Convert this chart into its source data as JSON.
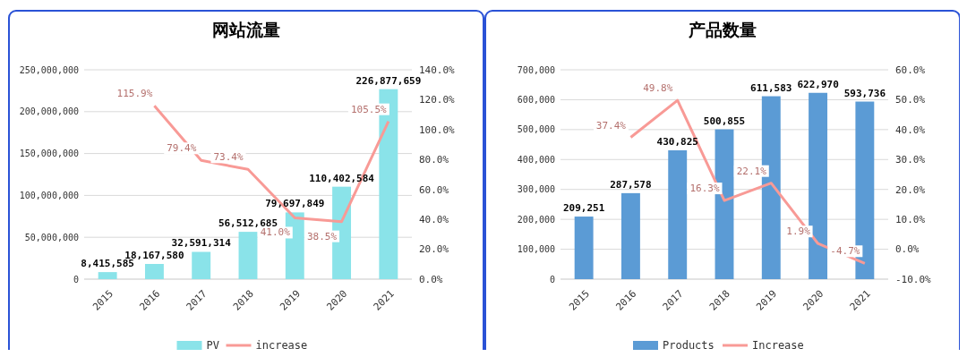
{
  "chart_data": [
    {
      "type": "bar",
      "title": "网站流量",
      "categories": [
        "2015",
        "2016",
        "2017",
        "2018",
        "2019",
        "2020",
        "2021"
      ],
      "series": [
        {
          "name": "PV",
          "color": "#8ae3e9",
          "values": [
            8415585,
            18167580,
            32591314,
            56512685,
            79697849,
            110402584,
            226877659
          ],
          "value_labels": [
            "8,415,585",
            "18,167,580",
            "32,591,314",
            "56,512,685",
            "79,697,849",
            "110,402,584",
            "226,877,659"
          ]
        },
        {
          "name": "increase",
          "type": "line",
          "axis": "y2",
          "color": "#f89a96",
          "values": [
            null,
            115.9,
            79.4,
            73.4,
            41.0,
            38.5,
            105.5
          ],
          "value_labels": [
            null,
            "115.9%",
            "79.4%",
            "73.4%",
            "41.0%",
            "38.5%",
            "105.5%"
          ]
        }
      ],
      "ylim": [
        0,
        250000000
      ],
      "yticks": [
        0,
        {
          "value": 50000000,
          "label": "50,000,000"
        },
        {
          "value": 100000000,
          "label": "100,000,000"
        },
        {
          "value": 150000000,
          "label": "150,000,000"
        },
        {
          "value": 200000000,
          "label": "200,000,000"
        },
        {
          "value": 250000000,
          "label": "250,000,000"
        }
      ],
      "y2lim": [
        0,
        140
      ],
      "y2ticks": [
        {
          "value": 0,
          "label": "0.0%"
        },
        {
          "value": 20,
          "label": "20.0%"
        },
        {
          "value": 40,
          "label": "40.0%"
        },
        {
          "value": 60,
          "label": "60.0%"
        },
        {
          "value": 80,
          "label": "80.0%"
        },
        {
          "value": 100,
          "label": "100.0%"
        },
        {
          "value": 120,
          "label": "120.0%"
        },
        {
          "value": 140,
          "label": "140.0%"
        }
      ],
      "grid": "y",
      "legend": "bottom"
    },
    {
      "type": "bar",
      "title": "产品数量",
      "categories": [
        "2015",
        "2016",
        "2017",
        "2018",
        "2019",
        "2020",
        "2021"
      ],
      "series": [
        {
          "name": "Products",
          "color": "#5b9bd5",
          "values": [
            209251,
            287578,
            430825,
            500855,
            611583,
            622970,
            593736
          ],
          "value_labels": [
            "209,251",
            "287,578",
            "430,825",
            "500,855",
            "611,583",
            "622,970",
            "593,736"
          ]
        },
        {
          "name": "Increase",
          "type": "line",
          "axis": "y2",
          "color": "#f89a96",
          "values": [
            null,
            37.4,
            49.8,
            16.3,
            22.1,
            1.9,
            -4.7
          ],
          "value_labels": [
            null,
            "37.4%",
            "49.8%",
            "16.3%",
            "22.1%",
            "1.9%",
            "-4.7%"
          ]
        }
      ],
      "ylim": [
        0,
        700000
      ],
      "yticks": [
        0,
        {
          "value": 100000,
          "label": "100,000"
        },
        {
          "value": 200000,
          "label": "200,000"
        },
        {
          "value": 300000,
          "label": "300,000"
        },
        {
          "value": 400000,
          "label": "400,000"
        },
        {
          "value": 500000,
          "label": "500,000"
        },
        {
          "value": 600000,
          "label": "600,000"
        },
        {
          "value": 700000,
          "label": "700,000"
        }
      ],
      "y2lim": [
        -10,
        60
      ],
      "y2ticks": [
        {
          "value": -10,
          "label": "-10.0%"
        },
        {
          "value": 0,
          "label": "0.0%"
        },
        {
          "value": 10,
          "label": "10.0%"
        },
        {
          "value": 20,
          "label": "20.0%"
        },
        {
          "value": 30,
          "label": "30.0%"
        },
        {
          "value": 40,
          "label": "40.0%"
        },
        {
          "value": 50,
          "label": "50.0%"
        },
        {
          "value": 60,
          "label": "60.0%"
        }
      ],
      "grid": "y",
      "legend": "bottom"
    }
  ]
}
